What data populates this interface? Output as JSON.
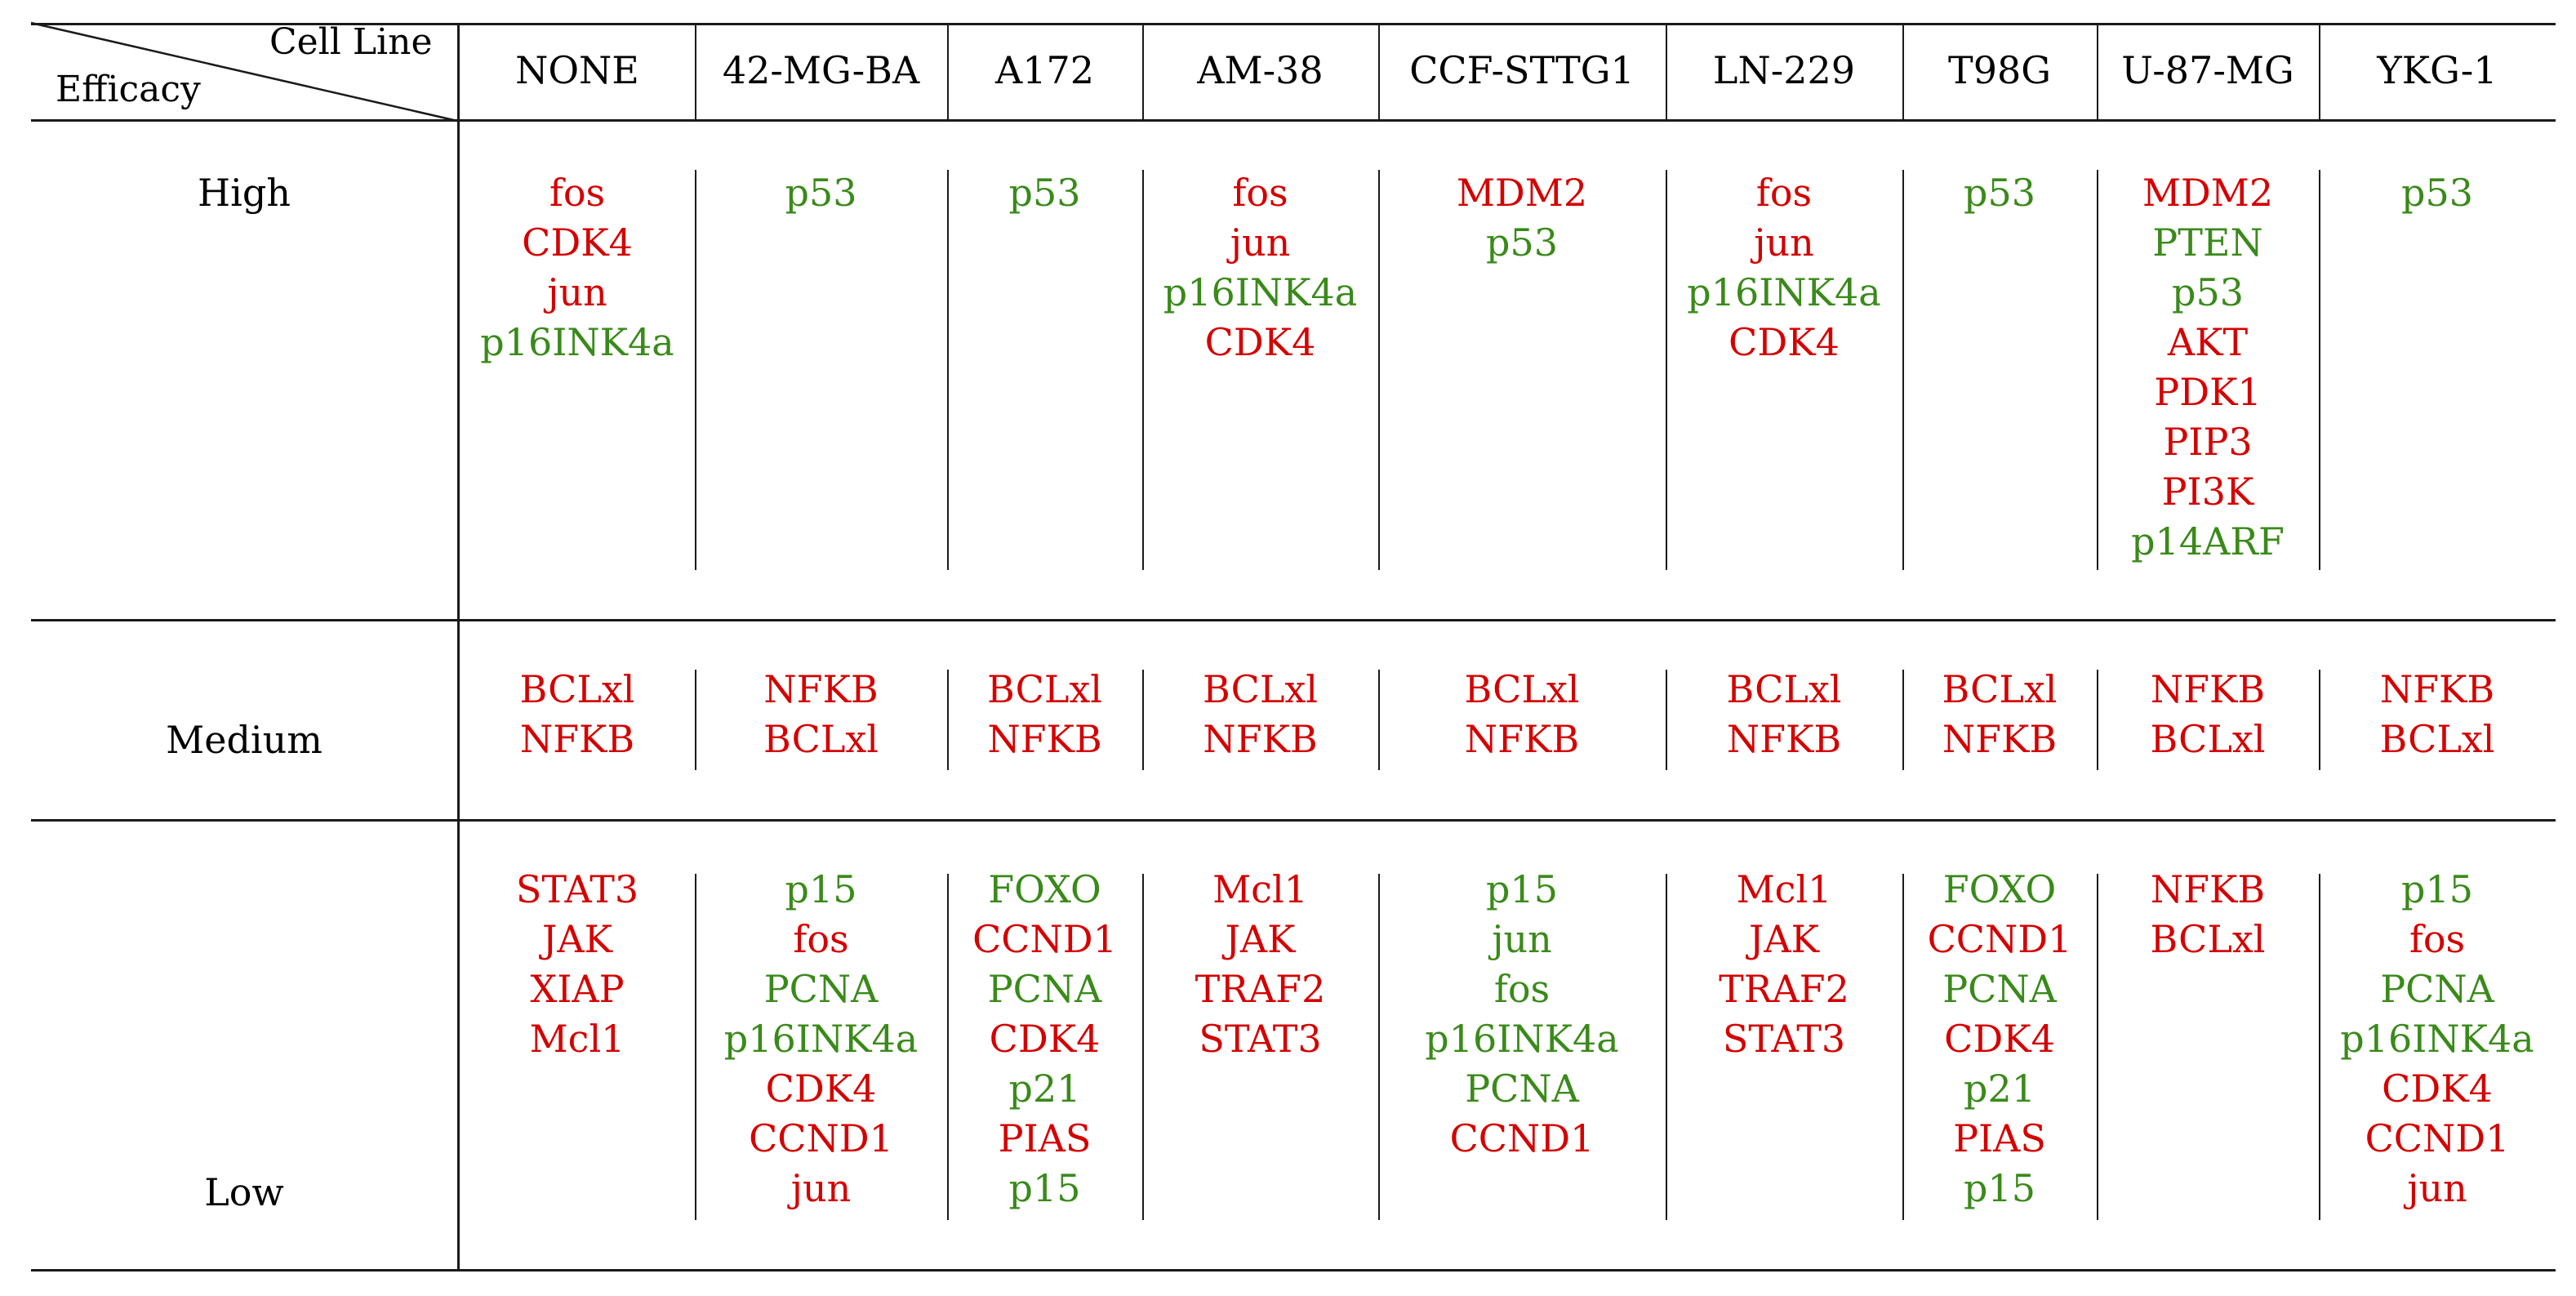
{
  "colors": {
    "up": "#d40000",
    "down": "#3a8a1a",
    "ink": "#000000"
  },
  "header": {
    "corner_top": "Cell Line",
    "corner_bottom": "Efficacy"
  },
  "columns": [
    "NONE",
    "42-MG-BA",
    "A172",
    "AM-38",
    "CCF-STTG1",
    "LN-229",
    "T98G",
    "U-87-MG",
    "YKG-1"
  ],
  "rows": [
    {
      "label": "High",
      "cells": [
        [
          {
            "t": "fos",
            "c": "up"
          },
          {
            "t": "CDK4",
            "c": "up"
          },
          {
            "t": "jun",
            "c": "up"
          },
          {
            "t": "p16INK4a",
            "c": "down"
          }
        ],
        [
          {
            "t": "p53",
            "c": "down"
          }
        ],
        [
          {
            "t": "p53",
            "c": "down"
          }
        ],
        [
          {
            "t": "fos",
            "c": "up"
          },
          {
            "t": "jun",
            "c": "up"
          },
          {
            "t": "p16INK4a",
            "c": "down"
          },
          {
            "t": "CDK4",
            "c": "up"
          }
        ],
        [
          {
            "t": "MDM2",
            "c": "up"
          },
          {
            "t": "p53",
            "c": "down"
          }
        ],
        [
          {
            "t": "fos",
            "c": "up"
          },
          {
            "t": "jun",
            "c": "up"
          },
          {
            "t": "p16INK4a",
            "c": "down"
          },
          {
            "t": "CDK4",
            "c": "up"
          }
        ],
        [
          {
            "t": "p53",
            "c": "down"
          }
        ],
        [
          {
            "t": "MDM2",
            "c": "up"
          },
          {
            "t": "PTEN",
            "c": "down"
          },
          {
            "t": "p53",
            "c": "down"
          },
          {
            "t": "AKT",
            "c": "up"
          },
          {
            "t": "PDK1",
            "c": "up"
          },
          {
            "t": "PIP3",
            "c": "up"
          },
          {
            "t": "PI3K",
            "c": "up"
          },
          {
            "t": "p14ARF",
            "c": "down"
          }
        ],
        [
          {
            "t": "p53",
            "c": "down"
          }
        ]
      ]
    },
    {
      "label": "Medium",
      "cells": [
        [
          {
            "t": "BCLxl",
            "c": "up"
          },
          {
            "t": "NFKB",
            "c": "up"
          }
        ],
        [
          {
            "t": "NFKB",
            "c": "up"
          },
          {
            "t": "BCLxl",
            "c": "up"
          }
        ],
        [
          {
            "t": "BCLxl",
            "c": "up"
          },
          {
            "t": "NFKB",
            "c": "up"
          }
        ],
        [
          {
            "t": "BCLxl",
            "c": "up"
          },
          {
            "t": "NFKB",
            "c": "up"
          }
        ],
        [
          {
            "t": "BCLxl",
            "c": "up"
          },
          {
            "t": "NFKB",
            "c": "up"
          }
        ],
        [
          {
            "t": "BCLxl",
            "c": "up"
          },
          {
            "t": "NFKB",
            "c": "up"
          }
        ],
        [
          {
            "t": "BCLxl",
            "c": "up"
          },
          {
            "t": "NFKB",
            "c": "up"
          }
        ],
        [
          {
            "t": "NFKB",
            "c": "up"
          },
          {
            "t": "BCLxl",
            "c": "up"
          }
        ],
        [
          {
            "t": "NFKB",
            "c": "up"
          },
          {
            "t": "BCLxl",
            "c": "up"
          }
        ]
      ]
    },
    {
      "label": "Low",
      "cells": [
        [
          {
            "t": "STAT3",
            "c": "up"
          },
          {
            "t": "JAK",
            "c": "up"
          },
          {
            "t": "XIAP",
            "c": "up"
          },
          {
            "t": "Mcl1",
            "c": "up"
          }
        ],
        [
          {
            "t": "p15",
            "c": "down"
          },
          {
            "t": "fos",
            "c": "up"
          },
          {
            "t": "PCNA",
            "c": "down"
          },
          {
            "t": "p16INK4a",
            "c": "down"
          },
          {
            "t": "CDK4",
            "c": "up"
          },
          {
            "t": "CCND1",
            "c": "up"
          },
          {
            "t": "jun",
            "c": "up"
          }
        ],
        [
          {
            "t": "FOXO",
            "c": "down"
          },
          {
            "t": "CCND1",
            "c": "up"
          },
          {
            "t": "PCNA",
            "c": "down"
          },
          {
            "t": "CDK4",
            "c": "up"
          },
          {
            "t": "p21",
            "c": "down"
          },
          {
            "t": "PIAS",
            "c": "up"
          },
          {
            "t": "p15",
            "c": "down"
          }
        ],
        [
          {
            "t": "Mcl1",
            "c": "up"
          },
          {
            "t": "JAK",
            "c": "up"
          },
          {
            "t": "TRAF2",
            "c": "up"
          },
          {
            "t": "STAT3",
            "c": "up"
          }
        ],
        [
          {
            "t": "p15",
            "c": "down"
          },
          {
            "t": "jun",
            "c": "down"
          },
          {
            "t": "fos",
            "c": "down"
          },
          {
            "t": "p16INK4a",
            "c": "down"
          },
          {
            "t": "PCNA",
            "c": "down"
          },
          {
            "t": "CCND1",
            "c": "up"
          }
        ],
        [
          {
            "t": "Mcl1",
            "c": "up"
          },
          {
            "t": "JAK",
            "c": "up"
          },
          {
            "t": "TRAF2",
            "c": "up"
          },
          {
            "t": "STAT3",
            "c": "up"
          }
        ],
        [
          {
            "t": "FOXO",
            "c": "down"
          },
          {
            "t": "CCND1",
            "c": "up"
          },
          {
            "t": "PCNA",
            "c": "down"
          },
          {
            "t": "CDK4",
            "c": "up"
          },
          {
            "t": "p21",
            "c": "down"
          },
          {
            "t": "PIAS",
            "c": "up"
          },
          {
            "t": "p15",
            "c": "down"
          }
        ],
        [
          {
            "t": "NFKB",
            "c": "up"
          },
          {
            "t": "BCLxl",
            "c": "up"
          }
        ],
        [
          {
            "t": "p15",
            "c": "down"
          },
          {
            "t": "fos",
            "c": "up"
          },
          {
            "t": "PCNA",
            "c": "down"
          },
          {
            "t": "p16INK4a",
            "c": "down"
          },
          {
            "t": "CDK4",
            "c": "up"
          },
          {
            "t": "CCND1",
            "c": "up"
          },
          {
            "t": "jun",
            "c": "up"
          }
        ]
      ]
    }
  ]
}
